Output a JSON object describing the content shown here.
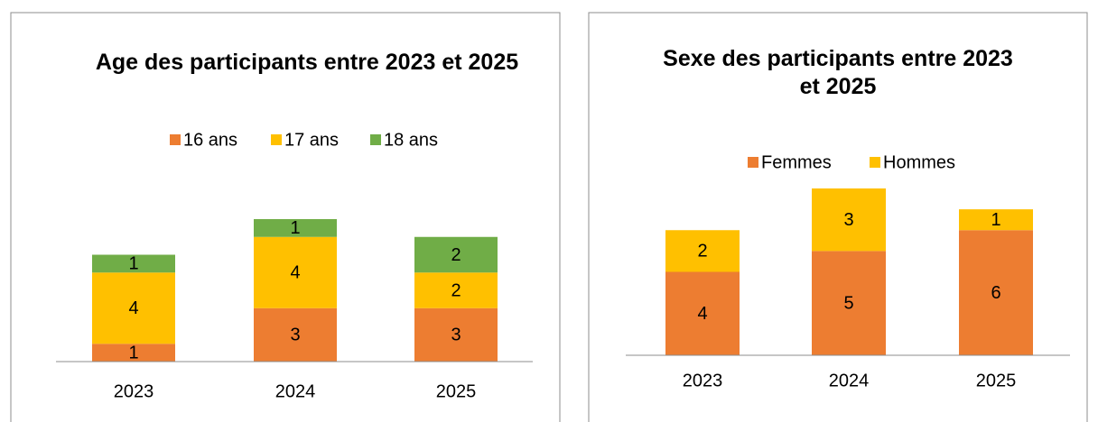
{
  "chart_data": [
    {
      "type": "stacked_bar",
      "title": "Age des participants entre 2023 et 2025",
      "categories": [
        "2023",
        "2024",
        "2025"
      ],
      "series": [
        {
          "name": "16 ans",
          "color": "#ed7d31",
          "values": [
            1,
            3,
            3
          ]
        },
        {
          "name": "17 ans",
          "color": "#ffc000",
          "values": [
            4,
            4,
            2
          ]
        },
        {
          "name": "18 ans",
          "color": "#70ad47",
          "values": [
            1,
            1,
            2
          ]
        }
      ],
      "ylim": [
        0,
        8
      ],
      "legend": "top"
    },
    {
      "type": "stacked_bar",
      "title": "Sexe des participants entre 2023 et 2025",
      "categories": [
        "2023",
        "2024",
        "2025"
      ],
      "series": [
        {
          "name": "Femmes",
          "color": "#ed7d31",
          "values": [
            4,
            5,
            6
          ]
        },
        {
          "name": "Hommes",
          "color": "#ffc000",
          "values": [
            2,
            3,
            1
          ]
        }
      ],
      "ylim": [
        0,
        8
      ],
      "legend": "top"
    }
  ]
}
